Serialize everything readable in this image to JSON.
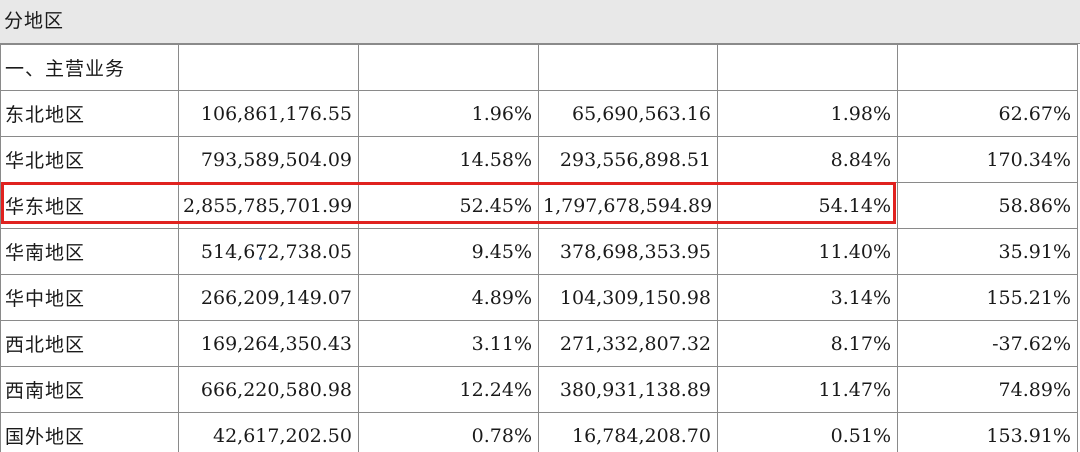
{
  "section_title": "分地区",
  "category_label": "一、主营业务",
  "highlight_color": "#e0221f",
  "rows": [
    {
      "region": "东北地区",
      "revenue": "106,861,176.55",
      "revenue_pct": "1.96%",
      "prior_revenue": "65,690,563.16",
      "prior_pct": "1.98%",
      "change": "62.67%"
    },
    {
      "region": "华北地区",
      "revenue": "793,589,504.09",
      "revenue_pct": "14.58%",
      "prior_revenue": "293,556,898.51",
      "prior_pct": "8.84%",
      "change": "170.34%"
    },
    {
      "region": "华东地区",
      "revenue": "2,855,785,701.99",
      "revenue_pct": "52.45%",
      "prior_revenue": "1,797,678,594.89",
      "prior_pct": "54.14%",
      "change": "58.86%"
    },
    {
      "region": "华南地区",
      "revenue": "514,672,738.05",
      "revenue_pct": "9.45%",
      "prior_revenue": "378,698,353.95",
      "prior_pct": "11.40%",
      "change": "35.91%"
    },
    {
      "region": "华中地区",
      "revenue": "266,209,149.07",
      "revenue_pct": "4.89%",
      "prior_revenue": "104,309,150.98",
      "prior_pct": "3.14%",
      "change": "155.21%"
    },
    {
      "region": "西北地区",
      "revenue": "169,264,350.43",
      "revenue_pct": "3.11%",
      "prior_revenue": "271,332,807.32",
      "prior_pct": "8.17%",
      "change": "-37.62%"
    },
    {
      "region": "西南地区",
      "revenue": "666,220,580.98",
      "revenue_pct": "12.24%",
      "prior_revenue": "380,931,138.89",
      "prior_pct": "11.47%",
      "change": "74.89%"
    },
    {
      "region": "国外地区",
      "revenue": "42,617,202.50",
      "revenue_pct": "0.78%",
      "prior_revenue": "16,784,208.70",
      "prior_pct": "0.51%",
      "change": "153.91%"
    }
  ]
}
